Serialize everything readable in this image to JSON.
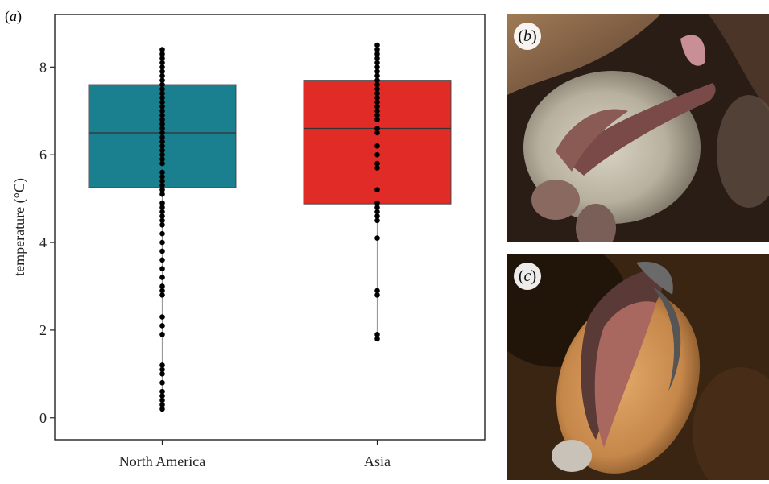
{
  "figure": {
    "panel_a_label": "a",
    "panel_b_label": "b",
    "panel_c_label": "c"
  },
  "photos": [
    {
      "label": "b",
      "icon": "bat-hibernating-photo-icon"
    },
    {
      "label": "c",
      "icon": "bat-hibernating-photo-icon"
    }
  ],
  "chart_data": {
    "type": "box",
    "title": "",
    "xlabel": "",
    "ylabel": "temperature (°C)",
    "ylim": [
      -0.5,
      9.2
    ],
    "yticks": [
      0,
      2,
      4,
      6,
      8
    ],
    "grid": false,
    "legend": "none",
    "categories": [
      "North America",
      "Asia"
    ],
    "series": [
      {
        "category": "North America",
        "color": "#1a7f8e",
        "q1": 5.25,
        "median": 6.5,
        "q3": 7.6,
        "whisker_low": 0.2,
        "whisker_high": 8.4,
        "points": [
          8.4,
          8.3,
          8.2,
          8.1,
          8.0,
          7.9,
          7.8,
          7.7,
          7.6,
          7.5,
          7.4,
          7.3,
          7.2,
          7.1,
          7.0,
          6.9,
          6.8,
          6.7,
          6.6,
          6.5,
          6.4,
          6.3,
          6.2,
          6.1,
          6.0,
          5.9,
          5.8,
          5.6,
          5.5,
          5.4,
          5.3,
          5.2,
          5.1,
          4.9,
          4.8,
          4.7,
          4.6,
          4.5,
          4.4,
          4.2,
          4.0,
          3.8,
          3.6,
          3.4,
          3.2,
          3.0,
          2.9,
          2.8,
          2.3,
          2.1,
          1.9,
          1.2,
          1.1,
          1.0,
          0.8,
          0.6,
          0.5,
          0.4,
          0.3,
          0.2
        ]
      },
      {
        "category": "Asia",
        "color": "#e02b27",
        "q1": 4.88,
        "median": 6.6,
        "q3": 7.7,
        "whisker_low": 1.8,
        "whisker_high": 8.5,
        "points": [
          8.5,
          8.4,
          8.3,
          8.2,
          8.1,
          8.0,
          7.9,
          7.8,
          7.7,
          7.6,
          7.5,
          7.4,
          7.3,
          7.2,
          7.1,
          7.0,
          6.9,
          6.8,
          6.6,
          6.5,
          6.2,
          6.0,
          5.8,
          5.7,
          5.2,
          4.9,
          4.8,
          4.7,
          4.6,
          4.5,
          4.1,
          2.9,
          2.8,
          1.9,
          1.8
        ]
      }
    ]
  }
}
